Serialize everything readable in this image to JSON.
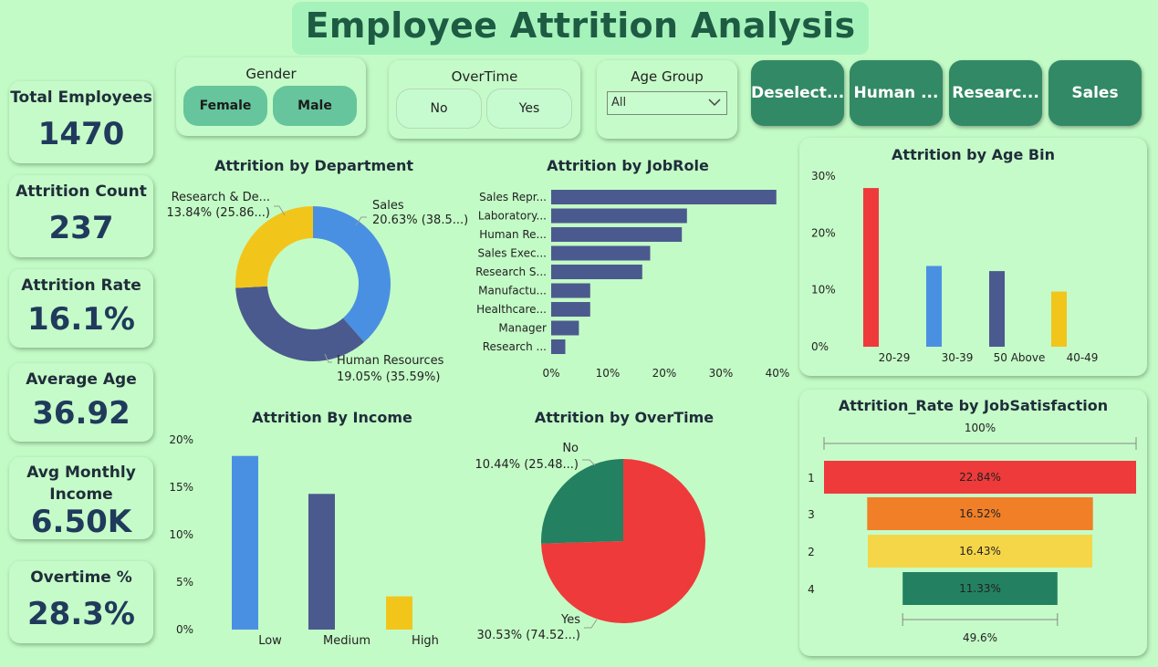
{
  "header": {
    "title": "Employee Attrition Analysis"
  },
  "kpis": [
    {
      "label": "Total Employees",
      "value": "1470"
    },
    {
      "label": "Attrition Count",
      "value": "237"
    },
    {
      "label": "Attrition Rate",
      "value": "16.1%"
    },
    {
      "label": "Average Age",
      "value": "36.92"
    },
    {
      "label": "Avg Monthly Income",
      "label_line1": "Avg Monthly",
      "label_line2": "Income",
      "value": "6.50K"
    },
    {
      "label": "Overtime %",
      "value": "28.3%"
    }
  ],
  "slicers": {
    "gender": {
      "title": "Gender",
      "options": [
        "Female",
        "Male"
      ]
    },
    "overtime": {
      "title": "OverTime",
      "options": [
        "No",
        "Yes"
      ]
    },
    "age_group": {
      "title": "Age Group",
      "selected": "All"
    }
  },
  "nav_buttons": [
    "Deselect...",
    "Human ...",
    "Researc...",
    "Sales"
  ],
  "icons": {
    "dropdown": "chevron-down-icon"
  },
  "chart_data": [
    {
      "type": "pie",
      "title": "Attrition by Department",
      "slices": [
        {
          "name": "Sales",
          "value": 20.63,
          "label_line1": "Sales",
          "label_line2": "20.63% (38.5...)",
          "color": "#4a90e2"
        },
        {
          "name": "Human Resources",
          "value": 19.05,
          "label_line1": "Human Resources",
          "label_line2": "19.05% (35.59%)",
          "color": "#4b5a8e"
        },
        {
          "name": "Research & Development",
          "value": 13.84,
          "label_line1": "Research & De...",
          "label_line2": "13.84% (25.86...)",
          "color": "#f2c51b"
        }
      ]
    },
    {
      "type": "bar",
      "title": "Attrition by JobRole",
      "categories": [
        "Sales Repr...",
        "Laboratory...",
        "Human Re...",
        "Sales Exec...",
        "Research S...",
        "Manufactu...",
        "Healthcare...",
        "Manager",
        "Research ..."
      ],
      "values": [
        39.8,
        24.0,
        23.1,
        17.5,
        16.1,
        6.9,
        6.9,
        4.9,
        2.5
      ],
      "xticks": [
        "0%",
        "10%",
        "20%",
        "30%",
        "40%"
      ],
      "xlim": [
        0,
        40
      ],
      "color": "#4b5a8e"
    },
    {
      "type": "bar",
      "title": "Attrition by Age Bin",
      "categories": [
        "20-29",
        "30-39",
        "50 Above",
        "40-49"
      ],
      "values": [
        27.9,
        14.2,
        13.3,
        9.7
      ],
      "colors": [
        "#ee3a3a",
        "#4a90e2",
        "#4b5a8e",
        "#f2c51b"
      ],
      "yticks": [
        "0%",
        "10%",
        "20%",
        "30%"
      ],
      "ylim": [
        0,
        30
      ]
    },
    {
      "type": "bar",
      "title": "Attrition By Income",
      "categories": [
        "Low",
        "Medium",
        "High"
      ],
      "values": [
        18.3,
        14.3,
        3.5
      ],
      "colors": [
        "#4a90e2",
        "#4b5a8e",
        "#f2c51b"
      ],
      "yticks": [
        "0%",
        "5%",
        "10%",
        "15%",
        "20%"
      ],
      "ylim": [
        0,
        20
      ]
    },
    {
      "type": "pie",
      "title": "Attrition by OverTime",
      "slices": [
        {
          "name": "Yes",
          "value": 30.53,
          "label_line1": "Yes",
          "label_line2": "30.53% (74.52...)",
          "color": "#ee3a3a"
        },
        {
          "name": "No",
          "value": 10.44,
          "label_line1": "No",
          "label_line2": "10.44% (25.48...)",
          "color": "#238060"
        }
      ]
    },
    {
      "type": "bar",
      "title": "Attrition_Rate by JobSatisfaction",
      "categories": [
        "1",
        "3",
        "2",
        "4"
      ],
      "values": [
        22.84,
        16.52,
        16.43,
        11.33
      ],
      "value_labels": [
        "22.84%",
        "16.52%",
        "16.43%",
        "11.33%"
      ],
      "colors": [
        "#ee3a3a",
        "#f07f27",
        "#f5d648",
        "#238060"
      ],
      "top_label": "100%",
      "bottom_label": "49.6%"
    }
  ]
}
